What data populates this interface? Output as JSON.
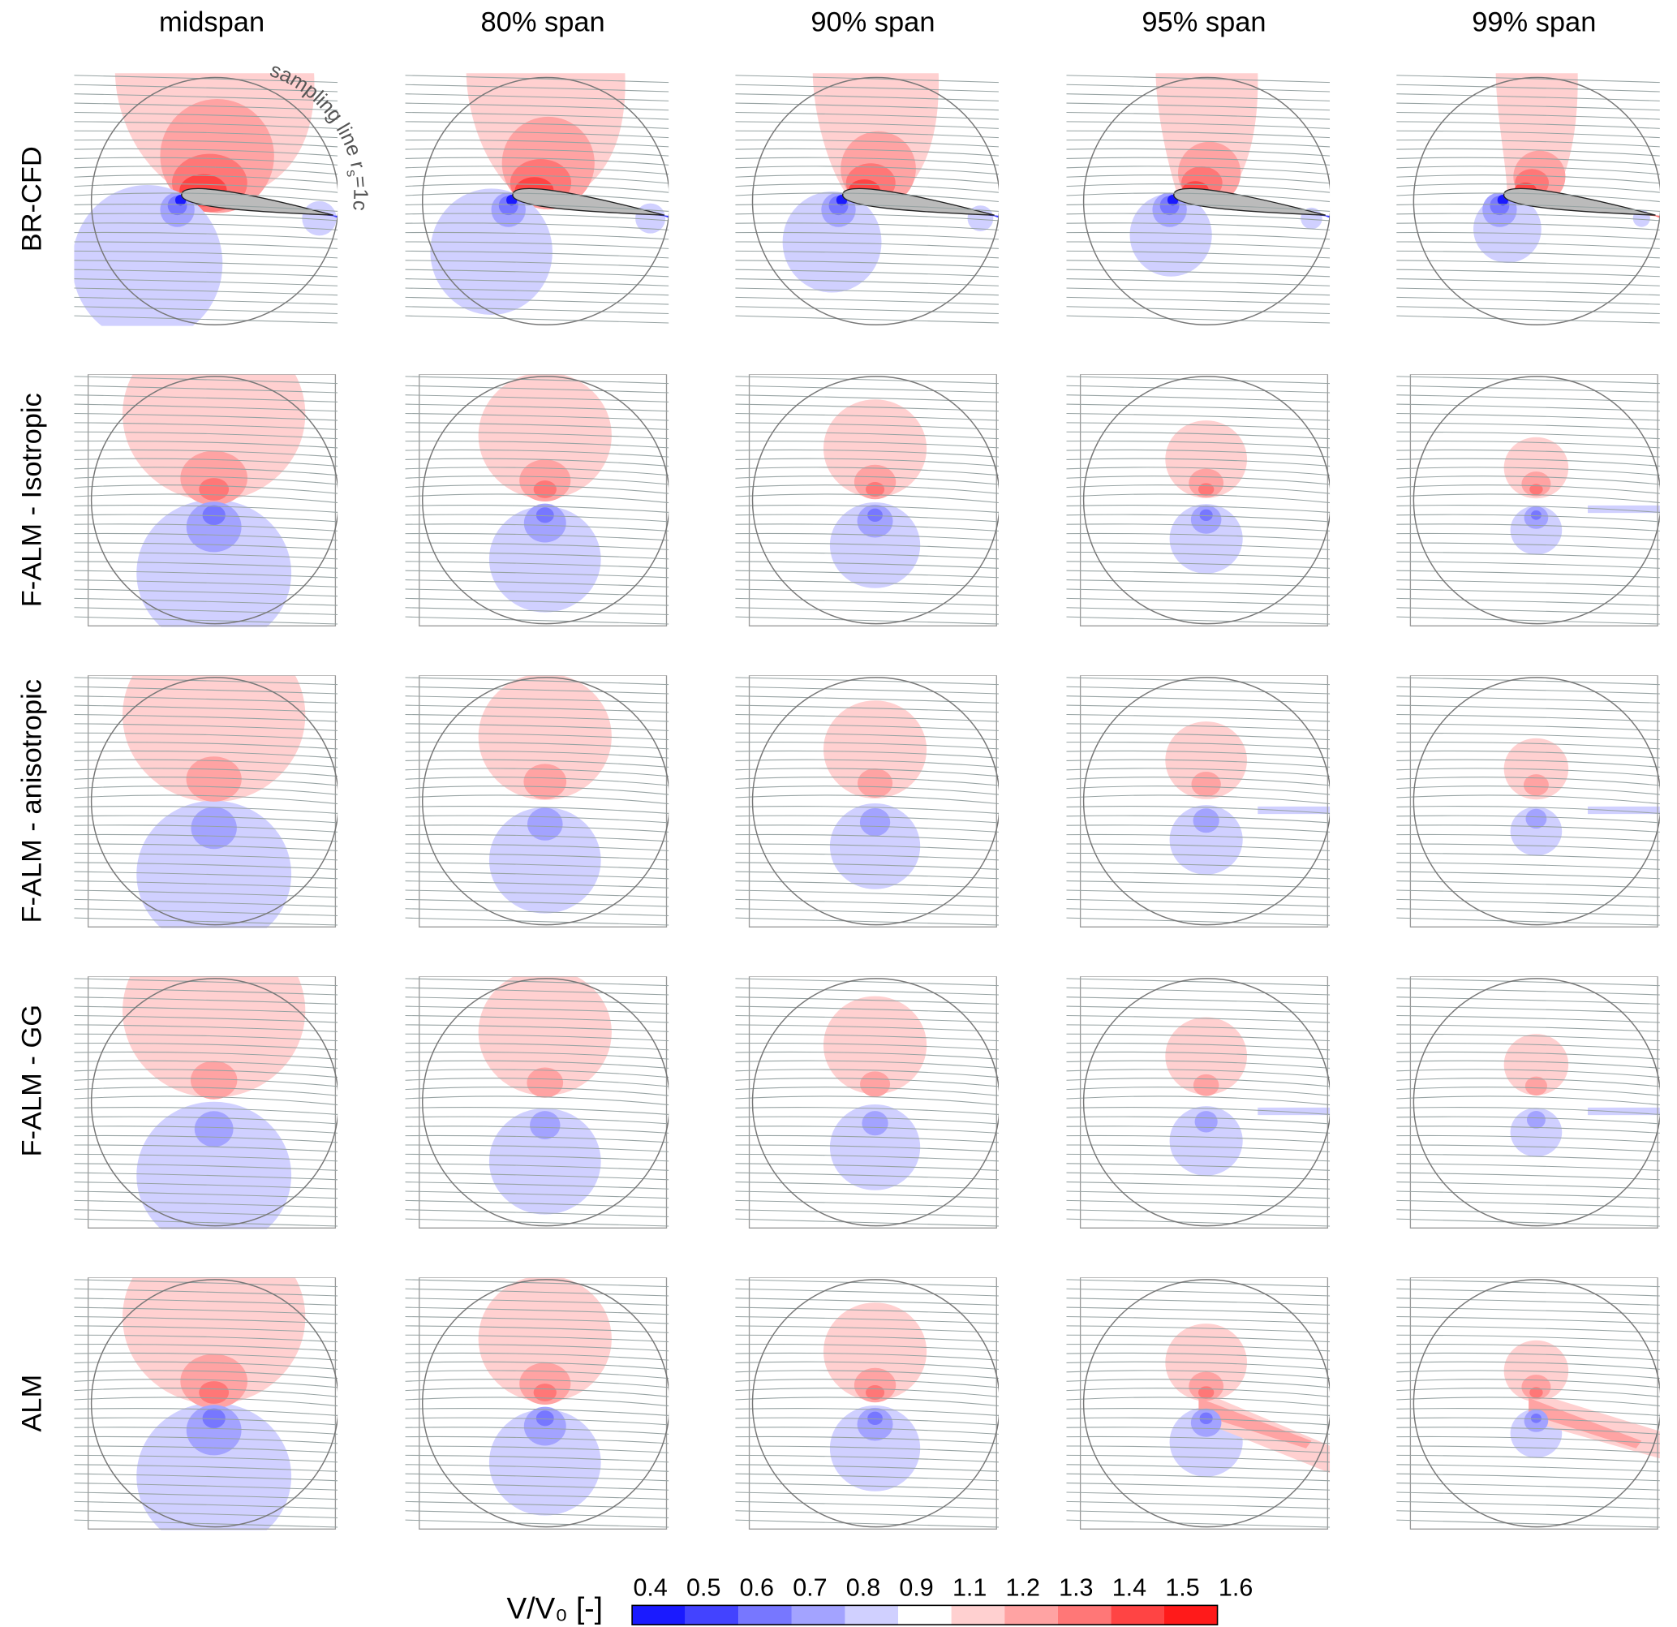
{
  "chart_data": {
    "type": "heatmap",
    "subtype": "contour-panel-grid",
    "columns": [
      "midspan",
      "80% span",
      "90% span",
      "95% span",
      "99% span"
    ],
    "rows": [
      "BR-CFD",
      "F-ALM - Isotropic",
      "F-ALM - anisotropic",
      "F-ALM - GG",
      "ALM"
    ],
    "annotation": {
      "prefix": "sampling line r",
      "sub": "s",
      "suffix": "=1c"
    },
    "colorbar": {
      "label": "V/V₀ [-]",
      "ticks": [
        "0.4",
        "0.5",
        "0.6",
        "0.7",
        "0.8",
        "0.9",
        "1.1",
        "1.2",
        "1.3",
        "1.4",
        "1.5",
        "1.6"
      ],
      "colors": [
        "#1a1aff",
        "#4343ff",
        "#7777ff",
        "#a3a3ff",
        "#d0d0ff",
        "#ffffff",
        "#ffd0d0",
        "#ffa3a3",
        "#ff7777",
        "#ff4444",
        "#ff1a1a"
      ]
    },
    "grid": false
  }
}
